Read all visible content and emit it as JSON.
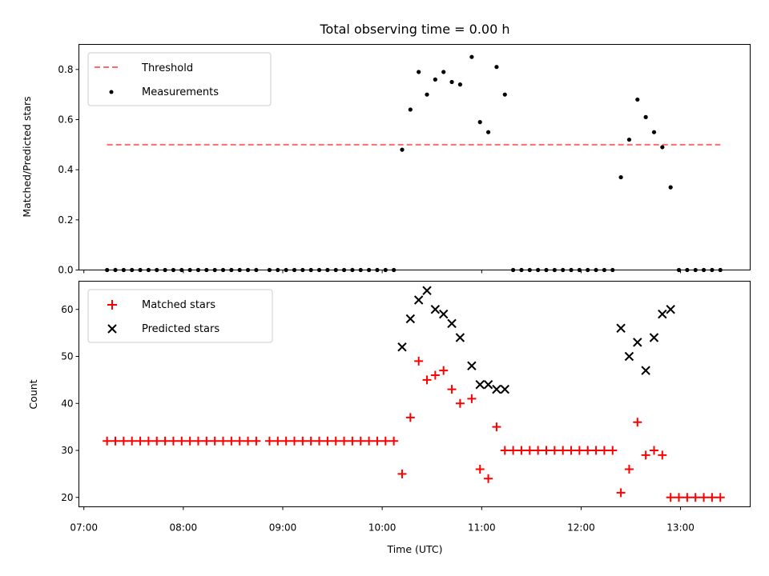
{
  "chart_data": [
    {
      "type": "scatter",
      "title": "Total observing time = 0.00 h",
      "xlabel": "",
      "ylabel": "Matched/Predicted stars",
      "ylim": [
        0,
        0.9
      ],
      "xlim": [
        "06:57",
        "13:42"
      ],
      "yticks": [
        "0.0",
        "0.2",
        "0.4",
        "0.6",
        "0.8"
      ],
      "grid": false,
      "legend": "upper-left",
      "threshold": {
        "name": "Threshold",
        "value": 0.5,
        "x_start": "07:14",
        "x_end": "13:24",
        "color": "#ff6b6b"
      },
      "series": [
        {
          "name": "Measurements",
          "color": "#000000",
          "marker": "dot",
          "points": [
            [
              "07:14",
              0
            ],
            [
              "07:19",
              0
            ],
            [
              "07:24",
              0
            ],
            [
              "07:29",
              0
            ],
            [
              "07:34",
              0
            ],
            [
              "07:39",
              0
            ],
            [
              "07:44",
              0
            ],
            [
              "07:49",
              0
            ],
            [
              "07:54",
              0
            ],
            [
              "07:59",
              0
            ],
            [
              "08:04",
              0
            ],
            [
              "08:09",
              0
            ],
            [
              "08:14",
              0
            ],
            [
              "08:19",
              0
            ],
            [
              "08:24",
              0
            ],
            [
              "08:29",
              0
            ],
            [
              "08:34",
              0
            ],
            [
              "08:39",
              0
            ],
            [
              "08:44",
              0
            ],
            [
              "08:52",
              0
            ],
            [
              "08:57",
              0
            ],
            [
              "09:02",
              0
            ],
            [
              "09:07",
              0
            ],
            [
              "09:12",
              0
            ],
            [
              "09:17",
              0
            ],
            [
              "09:22",
              0
            ],
            [
              "09:27",
              0
            ],
            [
              "09:32",
              0
            ],
            [
              "09:37",
              0
            ],
            [
              "09:42",
              0
            ],
            [
              "09:47",
              0
            ],
            [
              "09:52",
              0
            ],
            [
              "09:57",
              0
            ],
            [
              "10:02",
              0
            ],
            [
              "10:07",
              0
            ],
            [
              "10:12",
              0.48
            ],
            [
              "10:17",
              0.64
            ],
            [
              "10:22",
              0.79
            ],
            [
              "10:27",
              0.7
            ],
            [
              "10:32",
              0.76
            ],
            [
              "10:37",
              0.79
            ],
            [
              "10:42",
              0.75
            ],
            [
              "10:47",
              0.74
            ],
            [
              "10:54",
              0.85
            ],
            [
              "10:59",
              0.59
            ],
            [
              "11:04",
              0.55
            ],
            [
              "11:09",
              0.81
            ],
            [
              "11:14",
              0.7
            ],
            [
              "11:19",
              0
            ],
            [
              "11:24",
              0
            ],
            [
              "11:29",
              0
            ],
            [
              "11:34",
              0
            ],
            [
              "11:39",
              0
            ],
            [
              "11:44",
              0
            ],
            [
              "11:49",
              0
            ],
            [
              "11:54",
              0
            ],
            [
              "11:59",
              0
            ],
            [
              "12:04",
              0
            ],
            [
              "12:09",
              0
            ],
            [
              "12:14",
              0
            ],
            [
              "12:19",
              0
            ],
            [
              "12:24",
              0.37
            ],
            [
              "12:29",
              0.52
            ],
            [
              "12:34",
              0.68
            ],
            [
              "12:39",
              0.61
            ],
            [
              "12:44",
              0.55
            ],
            [
              "12:49",
              0.49
            ],
            [
              "12:54",
              0.33
            ],
            [
              "12:59",
              0
            ],
            [
              "13:04",
              0
            ],
            [
              "13:09",
              0
            ],
            [
              "13:14",
              0
            ],
            [
              "13:19",
              0
            ],
            [
              "13:24",
              0
            ]
          ]
        }
      ]
    },
    {
      "type": "scatter",
      "title": "",
      "xlabel": "Time (UTC)",
      "ylabel": "Count",
      "ylim": [
        18,
        66
      ],
      "xlim": [
        "06:57",
        "13:42"
      ],
      "xticks": [
        "07:00",
        "08:00",
        "09:00",
        "10:00",
        "11:00",
        "12:00",
        "13:00"
      ],
      "yticks": [
        "20",
        "30",
        "40",
        "50",
        "60"
      ],
      "grid": false,
      "legend": "upper-left",
      "series": [
        {
          "name": "Matched stars",
          "color": "#ff0000",
          "marker": "plus",
          "points": [
            [
              "07:14",
              32
            ],
            [
              "07:19",
              32
            ],
            [
              "07:24",
              32
            ],
            [
              "07:29",
              32
            ],
            [
              "07:34",
              32
            ],
            [
              "07:39",
              32
            ],
            [
              "07:44",
              32
            ],
            [
              "07:49",
              32
            ],
            [
              "07:54",
              32
            ],
            [
              "07:59",
              32
            ],
            [
              "08:04",
              32
            ],
            [
              "08:09",
              32
            ],
            [
              "08:14",
              32
            ],
            [
              "08:19",
              32
            ],
            [
              "08:24",
              32
            ],
            [
              "08:29",
              32
            ],
            [
              "08:34",
              32
            ],
            [
              "08:39",
              32
            ],
            [
              "08:44",
              32
            ],
            [
              "08:52",
              32
            ],
            [
              "08:57",
              32
            ],
            [
              "09:02",
              32
            ],
            [
              "09:07",
              32
            ],
            [
              "09:12",
              32
            ],
            [
              "09:17",
              32
            ],
            [
              "09:22",
              32
            ],
            [
              "09:27",
              32
            ],
            [
              "09:32",
              32
            ],
            [
              "09:37",
              32
            ],
            [
              "09:42",
              32
            ],
            [
              "09:47",
              32
            ],
            [
              "09:52",
              32
            ],
            [
              "09:57",
              32
            ],
            [
              "10:02",
              32
            ],
            [
              "10:07",
              32
            ],
            [
              "10:12",
              25
            ],
            [
              "10:17",
              37
            ],
            [
              "10:22",
              49
            ],
            [
              "10:27",
              45
            ],
            [
              "10:32",
              46
            ],
            [
              "10:37",
              47
            ],
            [
              "10:42",
              43
            ],
            [
              "10:47",
              40
            ],
            [
              "10:54",
              41
            ],
            [
              "10:59",
              26
            ],
            [
              "11:04",
              24
            ],
            [
              "11:09",
              35
            ],
            [
              "11:14",
              30
            ],
            [
              "11:19",
              30
            ],
            [
              "11:24",
              30
            ],
            [
              "11:29",
              30
            ],
            [
              "11:34",
              30
            ],
            [
              "11:39",
              30
            ],
            [
              "11:44",
              30
            ],
            [
              "11:49",
              30
            ],
            [
              "11:54",
              30
            ],
            [
              "11:59",
              30
            ],
            [
              "12:04",
              30
            ],
            [
              "12:09",
              30
            ],
            [
              "12:14",
              30
            ],
            [
              "12:19",
              30
            ],
            [
              "12:24",
              21
            ],
            [
              "12:29",
              26
            ],
            [
              "12:34",
              36
            ],
            [
              "12:39",
              29
            ],
            [
              "12:44",
              30
            ],
            [
              "12:49",
              29
            ],
            [
              "12:54",
              20
            ],
            [
              "12:59",
              20
            ],
            [
              "13:04",
              20
            ],
            [
              "13:09",
              20
            ],
            [
              "13:14",
              20
            ],
            [
              "13:19",
              20
            ],
            [
              "13:24",
              20
            ]
          ]
        },
        {
          "name": "Predicted stars",
          "color": "#000000",
          "marker": "x",
          "points": [
            [
              "10:12",
              52
            ],
            [
              "10:17",
              58
            ],
            [
              "10:22",
              62
            ],
            [
              "10:27",
              64
            ],
            [
              "10:32",
              60
            ],
            [
              "10:37",
              59
            ],
            [
              "10:42",
              57
            ],
            [
              "10:47",
              54
            ],
            [
              "10:54",
              48
            ],
            [
              "10:59",
              44
            ],
            [
              "11:04",
              44
            ],
            [
              "11:09",
              43
            ],
            [
              "11:14",
              43
            ],
            [
              "12:24",
              56
            ],
            [
              "12:29",
              50
            ],
            [
              "12:34",
              53
            ],
            [
              "12:39",
              47
            ],
            [
              "12:44",
              54
            ],
            [
              "12:49",
              59
            ],
            [
              "12:54",
              60
            ]
          ]
        }
      ]
    }
  ]
}
